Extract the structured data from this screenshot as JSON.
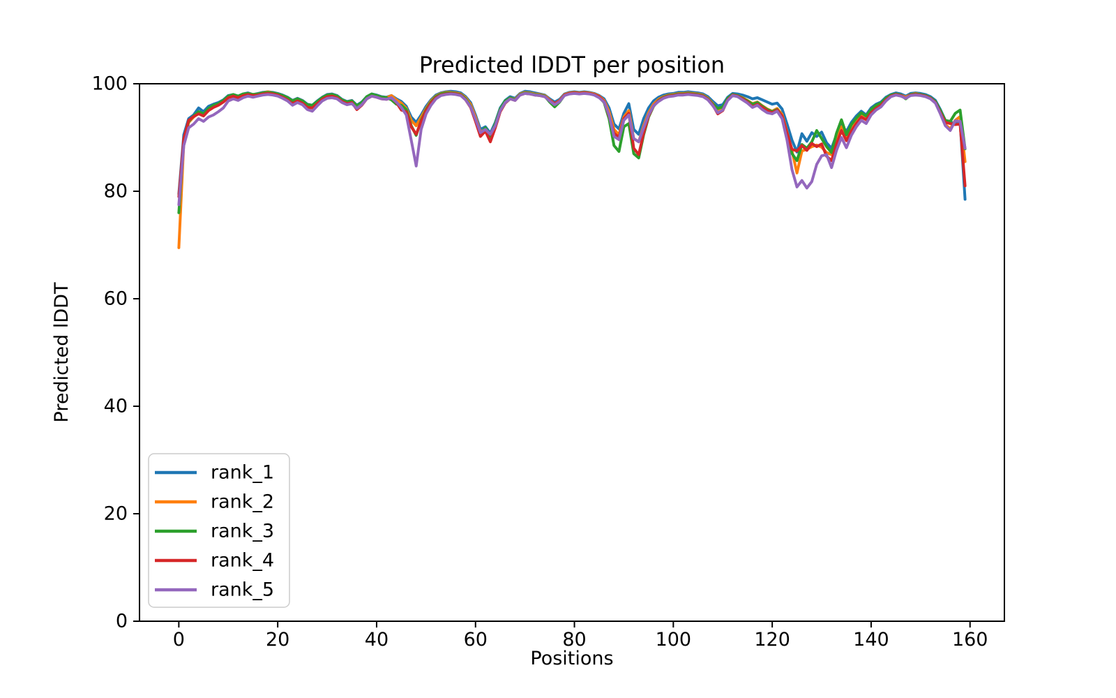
{
  "figure": {
    "background": "#ffffff"
  },
  "chart_data": {
    "type": "line",
    "title": "Predicted lDDT per position",
    "xlabel": "Positions",
    "ylabel": "Predicted lDDT",
    "xlim": [
      -7.95,
      166.95
    ],
    "ylim": [
      0,
      100
    ],
    "xticks": [
      0,
      20,
      40,
      60,
      80,
      100,
      120,
      140,
      160
    ],
    "yticks": [
      0,
      20,
      40,
      60,
      80,
      100
    ],
    "grid": false,
    "legend_position": "lower left",
    "x_start": 0,
    "x_step": 1,
    "series": [
      {
        "name": "rank_1",
        "color": "#1f77b4",
        "values": [
          79.5,
          90.5,
          93.5,
          94.2,
          95.5,
          94.8,
          95.8,
          96.2,
          96.5,
          97.0,
          97.8,
          98.0,
          97.7,
          98.1,
          98.3,
          98.0,
          98.2,
          98.4,
          98.5,
          98.4,
          98.2,
          97.9,
          97.5,
          96.9,
          97.3,
          96.9,
          96.2,
          96.0,
          96.8,
          97.5,
          98.0,
          98.1,
          97.8,
          97.1,
          96.7,
          96.9,
          96.0,
          96.6,
          97.6,
          98.1,
          97.9,
          97.6,
          97.5,
          97.8,
          97.2,
          96.7,
          95.8,
          93.8,
          92.8,
          94.2,
          95.8,
          97.0,
          97.9,
          98.3,
          98.5,
          98.6,
          98.5,
          98.3,
          97.6,
          96.5,
          94.2,
          91.5,
          92.0,
          90.8,
          92.8,
          95.5,
          96.9,
          97.6,
          97.3,
          98.2,
          98.6,
          98.5,
          98.3,
          98.1,
          97.9,
          97.2,
          96.6,
          97.1,
          98.1,
          98.4,
          98.5,
          98.4,
          98.5,
          98.4,
          98.2,
          97.8,
          97.2,
          95.5,
          92.5,
          91.6,
          94.5,
          96.3,
          91.5,
          90.6,
          93.5,
          95.5,
          96.8,
          97.5,
          97.9,
          98.1,
          98.2,
          98.4,
          98.4,
          98.5,
          98.4,
          98.3,
          98.1,
          97.6,
          96.7,
          95.9,
          96.1,
          97.5,
          98.2,
          98.1,
          97.9,
          97.6,
          97.2,
          97.4,
          97.0,
          96.6,
          96.2,
          96.4,
          95.3,
          92.5,
          89.5,
          87.3,
          90.7,
          89.3,
          90.9,
          90.2,
          91.0,
          89.0,
          88.0,
          90.5,
          92.4,
          91.1,
          92.8,
          94.0,
          94.9,
          94.2,
          95.5,
          96.2,
          96.6,
          97.5,
          98.0,
          98.3,
          98.1,
          97.7,
          98.2,
          98.3,
          98.2,
          98.0,
          97.6,
          96.9,
          95.2,
          93.2,
          92.9,
          92.6,
          92.9,
          78.5
        ]
      },
      {
        "name": "rank_2",
        "color": "#ff7f0e",
        "values": [
          69.5,
          89.0,
          92.8,
          93.8,
          94.6,
          94.2,
          95.2,
          95.8,
          96.2,
          96.8,
          97.6,
          97.9,
          97.6,
          98.0,
          98.2,
          98.0,
          98.1,
          98.3,
          98.5,
          98.3,
          98.1,
          97.8,
          97.4,
          96.8,
          97.2,
          96.8,
          96.0,
          95.9,
          96.6,
          97.4,
          97.9,
          98.0,
          97.7,
          97.0,
          96.6,
          96.8,
          95.8,
          96.4,
          97.5,
          98.0,
          97.8,
          97.5,
          97.4,
          97.8,
          97.0,
          96.4,
          95.4,
          93.2,
          92.2,
          93.8,
          95.4,
          96.8,
          97.7,
          98.2,
          98.4,
          98.4,
          98.3,
          98.1,
          97.4,
          96.2,
          93.8,
          91.0,
          91.6,
          90.4,
          92.4,
          95.2,
          96.7,
          97.4,
          97.1,
          98.1,
          98.4,
          98.3,
          98.1,
          98.0,
          97.8,
          97.0,
          96.3,
          96.9,
          98.0,
          98.3,
          98.4,
          98.3,
          98.4,
          98.3,
          98.1,
          97.7,
          96.9,
          94.8,
          91.5,
          90.5,
          93.8,
          95.0,
          89.8,
          89.2,
          92.2,
          94.6,
          96.2,
          97.1,
          97.6,
          97.9,
          98.0,
          98.2,
          98.2,
          98.3,
          98.2,
          98.1,
          97.9,
          97.3,
          96.3,
          95.2,
          95.6,
          97.2,
          98.0,
          97.8,
          97.4,
          96.9,
          96.3,
          96.6,
          95.9,
          95.3,
          94.9,
          95.4,
          94.3,
          91.0,
          87.5,
          83.4,
          87.5,
          87.8,
          88.3,
          88.6,
          88.2,
          87.2,
          86.8,
          89.5,
          92.0,
          89.9,
          91.6,
          92.9,
          94.0,
          93.5,
          94.8,
          95.6,
          96.1,
          97.1,
          97.8,
          98.1,
          97.9,
          97.5,
          98.0,
          98.2,
          98.0,
          97.8,
          97.4,
          96.6,
          94.7,
          92.4,
          91.6,
          93.2,
          93.9,
          85.5
        ]
      },
      {
        "name": "rank_3",
        "color": "#2ca02c",
        "values": [
          76.0,
          89.5,
          93.0,
          94.0,
          94.8,
          94.4,
          95.4,
          96.0,
          96.3,
          96.9,
          97.7,
          98.0,
          97.7,
          98.1,
          98.2,
          98.0,
          98.1,
          98.3,
          98.4,
          98.3,
          98.1,
          97.8,
          97.4,
          96.8,
          97.2,
          96.8,
          96.1,
          96.0,
          96.7,
          97.4,
          97.9,
          98.0,
          97.7,
          97.0,
          96.6,
          96.8,
          95.9,
          96.5,
          97.6,
          98.1,
          97.8,
          97.5,
          97.4,
          97.0,
          96.2,
          96.0,
          95.2,
          92.2,
          90.4,
          93.2,
          95.2,
          96.6,
          97.6,
          98.1,
          98.3,
          98.3,
          98.2,
          98.0,
          97.2,
          95.8,
          93.2,
          90.6,
          91.8,
          90.2,
          92.6,
          95.3,
          96.8,
          97.4,
          97.0,
          98.0,
          98.3,
          98.2,
          98.0,
          97.9,
          97.7,
          96.6,
          95.7,
          96.6,
          97.9,
          98.2,
          98.3,
          98.2,
          98.3,
          98.2,
          98.0,
          97.5,
          96.5,
          93.5,
          88.5,
          87.4,
          92.0,
          92.6,
          87.0,
          86.2,
          90.5,
          93.8,
          95.8,
          96.9,
          97.5,
          97.8,
          97.9,
          98.1,
          98.1,
          98.2,
          98.1,
          98.0,
          97.8,
          97.2,
          96.2,
          95.4,
          95.7,
          97.3,
          98.0,
          97.8,
          97.3,
          96.8,
          96.2,
          96.5,
          95.8,
          95.2,
          94.8,
          95.2,
          94.0,
          90.5,
          87.0,
          85.7,
          88.7,
          88.0,
          89.2,
          91.3,
          89.8,
          88.3,
          87.2,
          90.8,
          93.3,
          90.5,
          92.4,
          93.6,
          94.6,
          94.0,
          95.2,
          96.0,
          96.4,
          97.3,
          97.9,
          98.1,
          97.9,
          97.2,
          98.0,
          98.1,
          98.0,
          97.8,
          97.4,
          96.7,
          95.0,
          93.2,
          93.0,
          94.5,
          95.1,
          87.9
        ]
      },
      {
        "name": "rank_4",
        "color": "#d62728",
        "values": [
          79.0,
          89.8,
          93.2,
          93.9,
          94.4,
          94.0,
          95.0,
          95.6,
          96.0,
          96.6,
          97.4,
          97.7,
          97.4,
          97.8,
          98.0,
          97.8,
          97.9,
          98.1,
          98.2,
          98.1,
          97.9,
          97.5,
          97.0,
          96.3,
          96.8,
          96.4,
          95.6,
          95.5,
          96.3,
          97.1,
          97.6,
          97.7,
          97.4,
          96.7,
          96.3,
          96.5,
          95.2,
          96.0,
          97.2,
          97.7,
          97.5,
          97.2,
          97.1,
          97.4,
          96.5,
          95.1,
          94.8,
          92.0,
          90.6,
          93.0,
          95.0,
          96.4,
          97.4,
          97.9,
          98.1,
          98.2,
          98.1,
          97.9,
          97.0,
          95.6,
          93.0,
          90.2,
          91.2,
          89.2,
          91.8,
          94.8,
          96.4,
          97.2,
          96.9,
          97.9,
          98.2,
          98.1,
          97.9,
          97.8,
          97.6,
          96.9,
          96.3,
          96.8,
          97.9,
          98.2,
          98.3,
          98.2,
          98.3,
          98.2,
          98.0,
          97.6,
          96.7,
          94.0,
          90.8,
          90.0,
          93.5,
          94.5,
          88.0,
          86.8,
          90.8,
          94.0,
          95.9,
          96.8,
          97.4,
          97.7,
          97.8,
          98.0,
          98.0,
          98.1,
          98.0,
          97.9,
          97.7,
          97.1,
          96.0,
          94.4,
          95.0,
          97.0,
          97.9,
          97.7,
          97.2,
          96.6,
          95.7,
          96.2,
          95.6,
          95.0,
          94.6,
          95.1,
          94.0,
          90.8,
          87.8,
          87.5,
          88.5,
          87.6,
          88.9,
          88.3,
          88.8,
          86.5,
          85.7,
          88.8,
          91.3,
          89.4,
          91.2,
          92.6,
          93.8,
          93.3,
          94.6,
          95.4,
          96.0,
          97.0,
          97.7,
          98.0,
          97.8,
          97.3,
          97.9,
          98.0,
          97.9,
          97.7,
          97.3,
          96.5,
          94.6,
          92.8,
          92.6,
          92.4,
          92.5,
          81.0
        ]
      },
      {
        "name": "rank_5",
        "color": "#9467bd",
        "values": [
          77.5,
          88.5,
          91.8,
          92.5,
          93.5,
          93.0,
          93.8,
          94.2,
          94.8,
          95.5,
          96.8,
          97.2,
          96.9,
          97.4,
          97.7,
          97.5,
          97.7,
          97.9,
          98.0,
          97.9,
          97.7,
          97.3,
          96.8,
          96.0,
          96.5,
          96.1,
          95.2,
          94.9,
          95.9,
          96.8,
          97.3,
          97.4,
          97.2,
          96.5,
          96.1,
          96.3,
          95.4,
          96.1,
          97.2,
          97.7,
          97.5,
          97.2,
          97.1,
          97.4,
          96.6,
          95.6,
          94.2,
          89.5,
          84.7,
          91.5,
          94.4,
          96.0,
          97.2,
          97.8,
          98.0,
          98.1,
          98.0,
          97.8,
          97.0,
          95.7,
          93.4,
          90.9,
          91.5,
          90.6,
          92.2,
          95.0,
          96.5,
          97.2,
          96.9,
          97.9,
          98.2,
          98.1,
          97.9,
          97.8,
          97.6,
          96.8,
          96.1,
          96.7,
          97.8,
          98.1,
          98.2,
          98.1,
          98.2,
          98.1,
          97.9,
          97.4,
          96.6,
          94.2,
          90.2,
          89.6,
          93.2,
          94.2,
          89.8,
          89.2,
          91.8,
          94.2,
          95.9,
          96.7,
          97.3,
          97.6,
          97.7,
          97.9,
          97.9,
          98.0,
          97.9,
          97.8,
          97.6,
          97.0,
          95.9,
          94.6,
          95.1,
          96.9,
          97.8,
          97.6,
          97.0,
          96.4,
          95.6,
          96.0,
          95.2,
          94.6,
          94.4,
          94.9,
          93.5,
          89.5,
          84.0,
          80.8,
          82.0,
          80.6,
          81.8,
          85.0,
          86.6,
          86.8,
          84.4,
          87.6,
          90.0,
          88.1,
          90.4,
          92.0,
          93.2,
          92.6,
          94.2,
          95.1,
          95.7,
          96.8,
          97.6,
          97.9,
          97.7,
          97.3,
          97.8,
          97.9,
          97.8,
          97.6,
          97.2,
          96.4,
          94.4,
          92.2,
          91.3,
          93.1,
          93.0,
          88.0
        ]
      }
    ]
  }
}
